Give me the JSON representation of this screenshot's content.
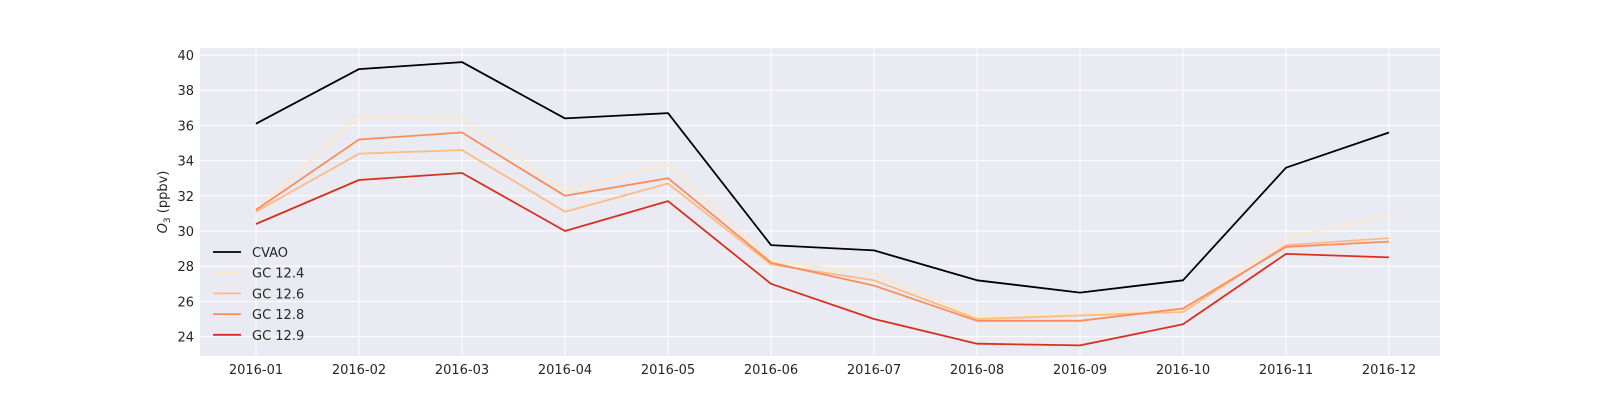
{
  "chart_data": {
    "type": "line",
    "title": "",
    "xlabel": "",
    "ylabel": {
      "base": "O",
      "sub": "3",
      "unit": " (ppbv)"
    },
    "categories": [
      "2016-01",
      "2016-02",
      "2016-03",
      "2016-04",
      "2016-05",
      "2016-06",
      "2016-07",
      "2016-08",
      "2016-09",
      "2016-10",
      "2016-11",
      "2016-12"
    ],
    "yticks": [
      24,
      26,
      28,
      30,
      32,
      34,
      36,
      38,
      40
    ],
    "ylim": [
      22.9,
      40.4
    ],
    "grid": true,
    "legend_position": "lower-left",
    "series": [
      {
        "name": "CVAO",
        "color": "#000000",
        "values": [
          36.1,
          39.2,
          39.6,
          36.4,
          36.7,
          29.2,
          28.9,
          27.2,
          26.5,
          27.2,
          33.6,
          35.6
        ]
      },
      {
        "name": "GC 12.4",
        "color": "#fee8c8",
        "values": [
          31.2,
          36.5,
          36.4,
          32.3,
          33.8,
          28.3,
          27.6,
          25.1,
          25.3,
          25.5,
          29.6,
          30.9
        ]
      },
      {
        "name": "GC 12.6",
        "color": "#fdbb84",
        "values": [
          31.1,
          34.4,
          34.6,
          31.1,
          32.7,
          28.1,
          27.2,
          25.0,
          25.2,
          25.4,
          29.2,
          29.6
        ]
      },
      {
        "name": "GC 12.8",
        "color": "#fc8d59",
        "values": [
          31.2,
          35.2,
          35.6,
          32.0,
          33.0,
          28.2,
          26.9,
          24.9,
          24.9,
          25.6,
          29.1,
          29.4
        ]
      },
      {
        "name": "GC 12.9",
        "color": "#d7301f",
        "values": [
          30.4,
          32.9,
          33.3,
          30.0,
          31.7,
          27.0,
          25.0,
          23.6,
          23.5,
          24.7,
          28.7,
          28.5
        ]
      }
    ]
  }
}
